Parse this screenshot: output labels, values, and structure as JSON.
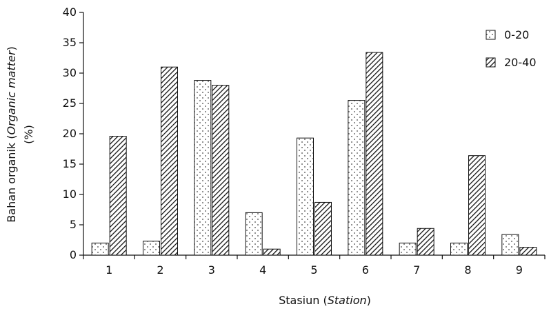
{
  "chart_data": {
    "type": "bar",
    "title": "",
    "xlabel": {
      "main": "Stasiun (",
      "italic": "Station",
      "close": ")"
    },
    "ylabel": {
      "line1_main": "Bahan organik (",
      "line1_italic": "Organic matter",
      "line1_close": ")",
      "line2": "(%)"
    },
    "categories": [
      "1",
      "2",
      "3",
      "4",
      "5",
      "6",
      "7",
      "8",
      "9"
    ],
    "ylim": [
      0,
      40
    ],
    "yticks": [
      "0",
      "5",
      "10",
      "15",
      "20",
      "25",
      "30",
      "35",
      "40"
    ],
    "grid": false,
    "legend_position": "top-right",
    "series": [
      {
        "name": "0-20",
        "pattern": "dotted",
        "values": [
          2.0,
          2.3,
          28.8,
          7.0,
          19.3,
          25.5,
          2.0,
          2.0,
          3.4
        ]
      },
      {
        "name": "20-40",
        "pattern": "diagonal-hatch",
        "values": [
          19.6,
          31.0,
          28.0,
          1.0,
          8.7,
          33.4,
          4.4,
          16.4,
          1.3
        ]
      }
    ]
  }
}
